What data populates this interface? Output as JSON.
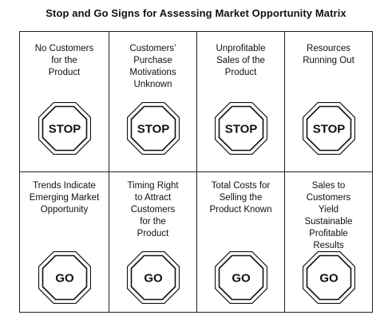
{
  "title": "Stop and Go Signs for Assessing Market Opportunity Matrix",
  "stop_row": [
    {
      "label": "No Customers\nfor the\nProduct",
      "sign": "STOP"
    },
    {
      "label": "Customers’\nPurchase\nMotivations\nUnknown",
      "sign": "STOP"
    },
    {
      "label": "Unprofitable\nSales of the\nProduct",
      "sign": "STOP"
    },
    {
      "label": "Resources\nRunning Out",
      "sign": "STOP"
    }
  ],
  "go_row": [
    {
      "label": "Trends Indicate\nEmerging Market\nOpportunity",
      "sign": "GO"
    },
    {
      "label": "Timing Right\nto Attract\nCustomers\nfor the\nProduct",
      "sign": "GO"
    },
    {
      "label": "Total Costs for\nSelling the\nProduct Known",
      "sign": "GO"
    },
    {
      "label": "Sales to\nCustomers\nYield\nSustainable\nProfitable\nResults",
      "sign": "GO"
    }
  ],
  "icons": {
    "stop": "octagon-stop-sign-icon",
    "go": "octagon-go-sign-icon"
  }
}
